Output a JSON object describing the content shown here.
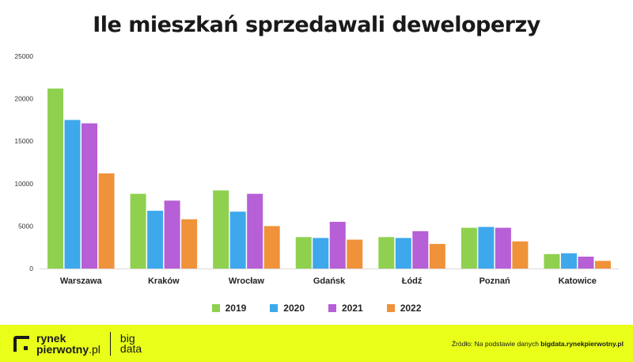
{
  "chart_data": {
    "type": "bar",
    "title": "Ile mieszkań sprzedawali deweloperzy",
    "categories": [
      "Warszawa",
      "Kraków",
      "Wrocław",
      "Gdańsk",
      "Łódź",
      "Poznań",
      "Katowice"
    ],
    "series": [
      {
        "name": "2019",
        "color": "#8fd14f",
        "values": [
          21200,
          8800,
          9200,
          3700,
          3700,
          4800,
          1700
        ]
      },
      {
        "name": "2020",
        "color": "#3ea8ec",
        "values": [
          17500,
          6800,
          6700,
          3600,
          3600,
          4900,
          1800
        ]
      },
      {
        "name": "2021",
        "color": "#b65fd6",
        "values": [
          17100,
          8000,
          8800,
          5500,
          4400,
          4800,
          1400
        ]
      },
      {
        "name": "2022",
        "color": "#f0923a",
        "values": [
          11200,
          5800,
          5000,
          3400,
          2900,
          3200,
          900
        ]
      }
    ],
    "ylim": [
      0,
      25000
    ],
    "yticks": [
      0,
      5000,
      10000,
      15000,
      20000,
      25000
    ],
    "xlabel": "",
    "ylabel": "",
    "legend_position": "bottom"
  },
  "footer": {
    "brand_line1": "rynek",
    "brand_line2a": "pierwotny",
    "brand_line2b": ".pl",
    "bigdata_line1": "big",
    "bigdata_line2": "data",
    "source_prefix": "Źródło: Na podstawie danych ",
    "source_site": "bigdata.rynekpierwotny.pl",
    "band_color": "#e9ff1a",
    "logo_color": "#1a1a1a"
  }
}
